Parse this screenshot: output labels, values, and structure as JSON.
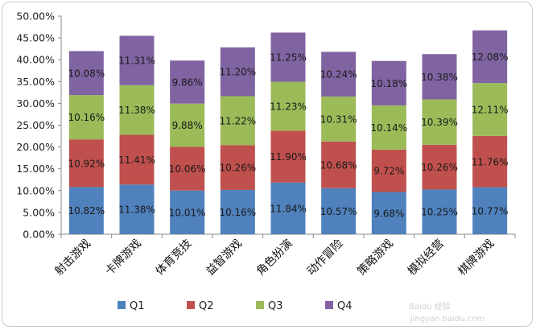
{
  "chart_data": {
    "type": "bar",
    "stacked": true,
    "categories": [
      "射击游戏",
      "卡牌游戏",
      "体育竞技",
      "益智游戏",
      "角色扮演",
      "动作冒险",
      "策略游戏",
      "模拟经营",
      "棋牌游戏"
    ],
    "series": [
      {
        "name": "Q1",
        "color": "#4f81bd",
        "values": [
          10.82,
          11.38,
          10.01,
          10.16,
          11.84,
          10.57,
          9.68,
          10.25,
          10.77
        ]
      },
      {
        "name": "Q2",
        "color": "#c0504d",
        "values": [
          10.92,
          11.41,
          10.06,
          10.26,
          11.9,
          10.68,
          9.72,
          10.26,
          11.76
        ]
      },
      {
        "name": "Q3",
        "color": "#9bbb59",
        "values": [
          10.16,
          11.38,
          9.88,
          11.22,
          11.23,
          10.31,
          10.14,
          10.39,
          12.11
        ]
      },
      {
        "name": "Q4",
        "color": "#8064a2",
        "values": [
          10.08,
          11.31,
          9.86,
          11.2,
          11.25,
          10.24,
          10.18,
          10.38,
          12.08
        ]
      }
    ],
    "ylim": [
      0,
      50
    ],
    "y_ticks": [
      "0.00%",
      "5.00%",
      "10.00%",
      "15.00%",
      "20.00%",
      "25.00%",
      "30.00%",
      "35.00%",
      "40.00%",
      "45.00%",
      "50.00%"
    ],
    "data_labels": [
      [
        "10.82%",
        "11.38%",
        "10.01%",
        "10.16%",
        "11.84%",
        "10.57%",
        "9.68%",
        "10.25%",
        "10.77%"
      ],
      [
        "10.92%",
        "11.41%",
        "10.06%",
        "10.26%",
        "11.90%",
        "10.68%",
        "9.72%",
        "10.26%",
        "11.76%"
      ],
      [
        "10.16%",
        "11.38%",
        "9.88%",
        "11.22%",
        "11.23%",
        "10.31%",
        "10.14%",
        "10.39%",
        "12.11%"
      ],
      [
        "10.08%",
        "11.31%",
        "9.86%",
        "11.20%",
        "11.25%",
        "10.24%",
        "10.18%",
        "10.38%",
        "12.08%"
      ]
    ],
    "grid": false,
    "legend": "bottom"
  },
  "watermark": {
    "brand": "Baidu 经验",
    "url": "jingyan.baidu.com"
  }
}
